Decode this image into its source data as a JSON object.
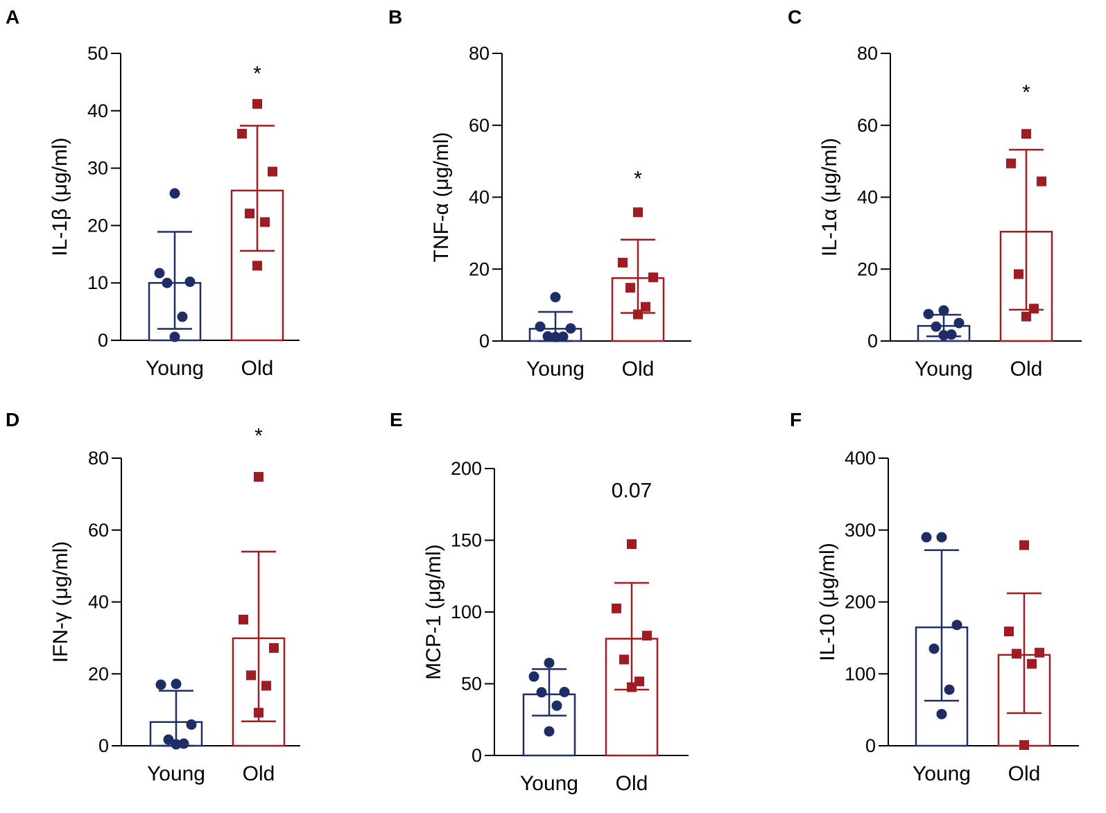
{
  "colors": {
    "young": "#1f2d66",
    "old": "#a01c22",
    "axis": "#000000"
  },
  "chart_data": [
    {
      "panel": "A",
      "type": "bar",
      "ylabel": "IL-1β (μg/ml)",
      "ylim": [
        0,
        50
      ],
      "yticks": [
        0,
        10,
        20,
        30,
        40,
        50
      ],
      "ytick_labels": [
        "0",
        "10",
        "20",
        "30",
        "40",
        "50"
      ],
      "categories": [
        "Young",
        "Old"
      ],
      "series": [
        {
          "name": "Young",
          "mean": 10.0,
          "sd_low": 2.0,
          "sd_high": 18.9,
          "points": [
            25.6,
            11.7,
            10.2,
            10.0,
            4.1,
            0.6
          ]
        },
        {
          "name": "Old",
          "mean": 26.1,
          "sd_low": 15.6,
          "sd_high": 37.4,
          "points": [
            41.2,
            36.0,
            29.4,
            22.1,
            20.6,
            13.0
          ]
        }
      ],
      "annotation": {
        "text": "*",
        "over": "Old",
        "y": 47
      }
    },
    {
      "panel": "B",
      "type": "bar",
      "ylabel": "TNF-α  (μg/ml)",
      "ylim": [
        0,
        80
      ],
      "yticks": [
        0,
        20,
        40,
        60,
        80
      ],
      "ytick_labels": [
        "0",
        "20",
        "40",
        "60",
        "80"
      ],
      "categories": [
        "Young",
        "Old"
      ],
      "series": [
        {
          "name": "Young",
          "mean": 3.4,
          "sd_low": 0,
          "sd_high": 8.1,
          "points": [
            12.2,
            4.0,
            3.5,
            1.3,
            1.2,
            1.1
          ]
        },
        {
          "name": "Old",
          "mean": 17.5,
          "sd_low": 7.8,
          "sd_high": 28.2,
          "points": [
            35.8,
            21.8,
            17.7,
            14.8,
            9.5,
            7.4
          ]
        }
      ],
      "annotation": {
        "text": "*",
        "over": "Old",
        "y": 46
      }
    },
    {
      "panel": "C",
      "type": "bar",
      "ylabel": "IL-1α  (μg/ml)",
      "ylim": [
        0,
        80
      ],
      "yticks": [
        0,
        20,
        40,
        60,
        80
      ],
      "ytick_labels": [
        "0",
        "20",
        "40",
        "60",
        "80"
      ],
      "categories": [
        "Young",
        "Old"
      ],
      "series": [
        {
          "name": "Young",
          "mean": 4.2,
          "sd_low": 1.3,
          "sd_high": 7.3,
          "points": [
            8.5,
            7.5,
            5.0,
            4.0,
            1.8,
            1.6
          ]
        },
        {
          "name": "Old",
          "mean": 30.4,
          "sd_low": 8.7,
          "sd_high": 53.2,
          "points": [
            57.6,
            49.4,
            44.4,
            18.6,
            9.0,
            6.8
          ]
        }
      ],
      "annotation": {
        "text": "*",
        "over": "Old",
        "y": 70
      }
    },
    {
      "panel": "D",
      "type": "bar",
      "ylabel": "IFN-γ  (μg/ml)",
      "ylim": [
        0,
        80
      ],
      "yticks": [
        0,
        20,
        40,
        60,
        80
      ],
      "ytick_labels": [
        "0",
        "20",
        "40",
        "60",
        "80"
      ],
      "categories": [
        "Young",
        "Old"
      ],
      "series": [
        {
          "name": "Young",
          "mean": 6.6,
          "sd_low": 0,
          "sd_high": 15.3,
          "points": [
            17.2,
            17.0,
            5.9,
            1.7,
            0.6,
            0.4
          ]
        },
        {
          "name": "Old",
          "mean": 29.9,
          "sd_low": 6.8,
          "sd_high": 54.0,
          "points": [
            74.8,
            35.1,
            27.2,
            19.6,
            16.7,
            9.2
          ]
        }
      ],
      "annotation": {
        "text": "*",
        "over": "Old",
        "y": 87
      }
    },
    {
      "panel": "E",
      "type": "bar",
      "ylabel": "MCP-1 (μg/ml)",
      "ylim": [
        0,
        200
      ],
      "yticks": [
        0,
        50,
        100,
        150,
        200
      ],
      "ytick_labels": [
        "0",
        "50",
        "100",
        "150",
        "200"
      ],
      "categories": [
        "Young",
        "Old"
      ],
      "series": [
        {
          "name": "Young",
          "mean": 42.6,
          "sd_low": 27.8,
          "sd_high": 60.2,
          "points": [
            64.5,
            55.0,
            44.2,
            44.0,
            34.7,
            16.8
          ]
        },
        {
          "name": "Old",
          "mean": 81.4,
          "sd_low": 45.9,
          "sd_high": 120.3,
          "points": [
            147.3,
            102.5,
            83.5,
            66.9,
            51.6,
            47.6
          ]
        }
      ],
      "annotation": {
        "text": "0.07",
        "over": "Old",
        "y": 180
      }
    },
    {
      "panel": "F",
      "type": "bar",
      "ylabel": "IL-10 (μg/ml)",
      "ylim": [
        0,
        400
      ],
      "yticks": [
        0,
        100,
        200,
        300,
        400
      ],
      "ytick_labels": [
        "0",
        "100",
        "200",
        "300",
        "400"
      ],
      "categories": [
        "Young",
        "Old"
      ],
      "series": [
        {
          "name": "Young",
          "mean": 164.7,
          "sd_low": 62.7,
          "sd_high": 272.1,
          "points": [
            290.0,
            290.0,
            168.0,
            135.0,
            78.0,
            44.0
          ]
        },
        {
          "name": "Old",
          "mean": 126.4,
          "sd_low": 45.4,
          "sd_high": 212.1,
          "points": [
            279.0,
            159.0,
            129.5,
            128.0,
            114.0,
            1.0
          ]
        }
      ],
      "annotation": null
    }
  ]
}
